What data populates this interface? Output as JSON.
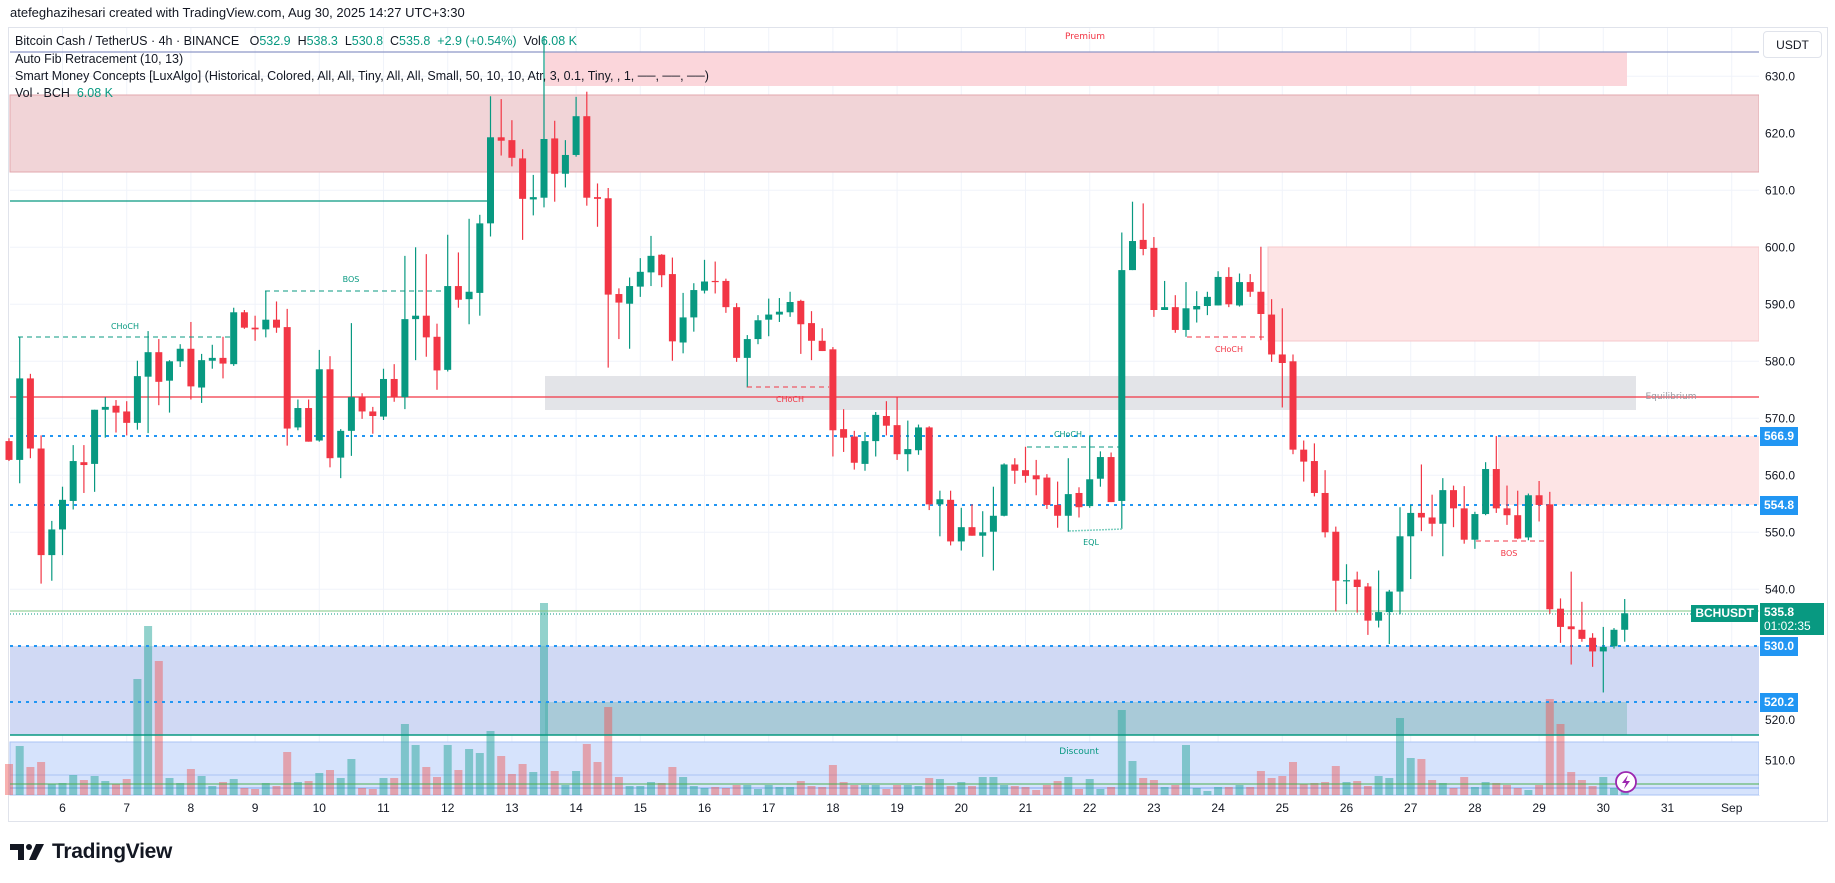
{
  "credit": "atefeghazihesari created with TradingView.com, Aug 30, 2025 14:27 UTC+3:30",
  "legend": {
    "symbol": "Bitcoin Cash / TetherUS · 4h · BINANCE",
    "o_label": "O",
    "o": "532.9",
    "h_label": "H",
    "h": "538.3",
    "l_label": "L",
    "l": "530.8",
    "c_label": "C",
    "c": "535.8",
    "change": "+2.9 (+0.54%)",
    "vol_label": "Vol",
    "vol": "6.08 K",
    "indicator1": "Auto Fib Retracement (10, 13)",
    "indicator2": "Smart Money Concepts [LuxAlgo] (Historical, Colored, All, All, Tiny, All, All, Small, 50, 10, 10, Atr, 3, 0.1, Tiny, , 1, ──, ──, ──)",
    "indicator3_label": "Vol · BCH",
    "indicator3_value": "6.08 K"
  },
  "currency": "USDT",
  "zones": {
    "premium": "Premium",
    "equilibrium": "Equilibrium",
    "discount": "Discount"
  },
  "structure_labels": {
    "choch1": "CHoCH",
    "bos1": "BOS",
    "choch2": "CHoCH",
    "choch3": "CHoCH",
    "eql": "EQL",
    "choch4": "CHoCH",
    "bos2": "BOS"
  },
  "price_tags": {
    "symbol": "BCHUSDT",
    "last": "535.8",
    "countdown": "01:02:35",
    "levels": [
      "566.9",
      "554.8",
      "530.0",
      "520.2"
    ]
  },
  "colors": {
    "up": "#089981",
    "down": "#f23645",
    "level": "#2196f3",
    "background": "#ffffff"
  },
  "logo": "TradingView",
  "chart_data": {
    "type": "candlestick",
    "title": "Bitcoin Cash / TetherUS · 4h · BINANCE",
    "xlabel": "",
    "ylabel": "USDT",
    "ylim": [
      502.7,
      638.5
    ],
    "y_ticks": [
      "630.0",
      "620.0",
      "610.0",
      "600.0",
      "590.0",
      "580.0",
      "570.0",
      "560.0",
      "550.0",
      "540.0",
      "530.0",
      "520.0",
      "510.0"
    ],
    "x_ticks": [
      "6",
      "7",
      "8",
      "9",
      "10",
      "11",
      "12",
      "13",
      "14",
      "15",
      "16",
      "17",
      "18",
      "19",
      "20",
      "21",
      "22",
      "23",
      "24",
      "25",
      "26",
      "27",
      "28",
      "29",
      "30",
      "31",
      "Sep"
    ],
    "x_first_tick_bar": 5,
    "bars_per_day": 6,
    "grid": true,
    "volume_unit": "K",
    "volume_range": [
      0,
      240
    ],
    "candles_ohlc": [
      [
        566,
        566.5,
        562.5,
        562.7
      ],
      [
        562.7,
        584.3,
        558.6,
        577
      ],
      [
        577,
        577.8,
        563,
        564.7
      ],
      [
        564.7,
        567,
        541,
        546
      ],
      [
        546,
        552,
        541.5,
        550.5
      ],
      [
        550.5,
        558,
        546,
        555.7
      ],
      [
        555.5,
        565.3,
        554,
        562.5
      ],
      [
        562.3,
        565.3,
        556.9,
        561.8
      ],
      [
        562,
        571.5,
        557.1,
        571.5
      ],
      [
        571.5,
        573.7,
        566.6,
        572
      ],
      [
        572.2,
        573.2,
        567.5,
        571
      ],
      [
        571.2,
        573,
        567,
        569.2
      ],
      [
        569.2,
        580.1,
        568,
        577.4
      ],
      [
        577.3,
        585.3,
        567.4,
        581.6
      ],
      [
        581.6,
        583.9,
        572.3,
        576.4
      ],
      [
        576.6,
        580.2,
        571,
        580
      ],
      [
        580,
        583,
        579,
        582.2
      ],
      [
        582.2,
        586.9,
        573.3,
        575.6
      ],
      [
        575.4,
        581.3,
        572.7,
        580.2
      ],
      [
        580.1,
        582.9,
        578.7,
        580.6
      ],
      [
        580.6,
        584.3,
        577,
        579.6
      ],
      [
        579.5,
        589.4,
        579.2,
        588.6
      ],
      [
        588.6,
        589,
        585.7,
        585.9
      ],
      [
        585.9,
        588,
        583.6,
        585.6
      ],
      [
        585.6,
        592.3,
        584.2,
        587.3
      ],
      [
        587.3,
        590.5,
        585,
        585.9
      ],
      [
        586,
        589.2,
        565.2,
        568.2
      ],
      [
        568.4,
        573.3,
        567.9,
        571.8
      ],
      [
        571.8,
        573.3,
        565.9,
        565.9
      ],
      [
        566.1,
        582,
        565.9,
        578.6
      ],
      [
        578.6,
        580.9,
        561.4,
        563
      ],
      [
        563.1,
        568.1,
        559.5,
        567.8
      ],
      [
        567.8,
        586.7,
        563.4,
        573.7
      ],
      [
        573.7,
        574.4,
        569.9,
        571.2
      ],
      [
        571.2,
        572,
        567.3,
        570.4
      ],
      [
        570.3,
        578.7,
        569.7,
        576.9
      ],
      [
        576.9,
        579.5,
        572.9,
        573.7
      ],
      [
        573.7,
        598.5,
        571.6,
        587.4
      ],
      [
        587.4,
        600,
        580.2,
        588
      ],
      [
        588,
        598.8,
        580.8,
        584.2
      ],
      [
        584.3,
        586.6,
        575,
        578.4
      ],
      [
        578.5,
        602.2,
        578.2,
        593.2
      ],
      [
        593.2,
        599.1,
        589.4,
        590.8
      ],
      [
        590.9,
        605,
        586.5,
        592.2
      ],
      [
        592,
        605.7,
        588,
        604.2
      ],
      [
        604.2,
        626.5,
        601.9,
        619.3
      ],
      [
        619.3,
        626,
        616.1,
        618.7
      ],
      [
        618.8,
        622.3,
        614.2,
        615.7
      ],
      [
        615.6,
        617.2,
        601.3,
        608.5
      ],
      [
        608.4,
        612.7,
        605.6,
        608.8
      ],
      [
        608.7,
        637,
        607,
        619
      ],
      [
        619.1,
        622.2,
        608,
        612.9
      ],
      [
        612.9,
        618.8,
        610.5,
        616.2
      ],
      [
        616.2,
        626.4,
        615.9,
        623
      ],
      [
        623,
        627.3,
        607.3,
        608.7
      ],
      [
        608.8,
        611.2,
        603.6,
        608.5
      ],
      [
        608.6,
        610.4,
        578.9,
        591.7
      ],
      [
        591.8,
        592.8,
        583.9,
        590.3
      ],
      [
        590.1,
        594.7,
        582.2,
        593.2
      ],
      [
        593.1,
        598.1,
        591.3,
        595.7
      ],
      [
        595.6,
        602,
        593.2,
        598.5
      ],
      [
        598.7,
        598.8,
        593,
        595.1
      ],
      [
        595.3,
        598.2,
        580.1,
        583.5
      ],
      [
        583.3,
        592,
        581.4,
        587.7
      ],
      [
        587.7,
        593.7,
        585.2,
        592.5
      ],
      [
        592.4,
        597.8,
        591.9,
        594
      ],
      [
        594.1,
        597.5,
        591.9,
        594
      ],
      [
        594.1,
        594.5,
        588.5,
        589.5
      ],
      [
        589.5,
        590.2,
        579.9,
        580.6
      ],
      [
        580.6,
        584.6,
        575.4,
        583.9
      ],
      [
        583.9,
        588.1,
        583,
        587.2
      ],
      [
        587.3,
        591,
        584.4,
        588.2
      ],
      [
        588.2,
        591.1,
        586.9,
        588.7
      ],
      [
        588.6,
        592.2,
        587.8,
        590.4
      ],
      [
        590.6,
        590.8,
        581.3,
        586.5
      ],
      [
        586.7,
        588.8,
        580.2,
        583.6
      ],
      [
        583.6,
        585.8,
        581.8,
        581.8
      ],
      [
        582.1,
        582.5,
        563.3,
        567.9
      ],
      [
        568.1,
        571.6,
        564.1,
        566.6
      ],
      [
        566.8,
        567.8,
        561,
        562.2
      ],
      [
        562,
        567.6,
        560.8,
        566
      ],
      [
        566,
        571.1,
        563.3,
        570.6
      ],
      [
        570.4,
        573,
        567,
        568.7
      ],
      [
        568.8,
        573.7,
        562.7,
        563.7
      ],
      [
        563.7,
        569.6,
        560.7,
        564.6
      ],
      [
        564.4,
        568.9,
        563.6,
        568.4
      ],
      [
        568.4,
        568.6,
        553.9,
        554.9
      ],
      [
        554.9,
        557.3,
        549.3,
        555.8
      ],
      [
        555.7,
        557.3,
        547.7,
        548.4
      ],
      [
        548.4,
        554.3,
        546.8,
        550.9
      ],
      [
        550.9,
        554.9,
        549.4,
        549.4
      ],
      [
        549.4,
        553.7,
        545.7,
        550
      ],
      [
        550.1,
        558,
        543.3,
        552.9
      ],
      [
        552.9,
        562.1,
        552.8,
        561.9
      ],
      [
        561.9,
        563,
        558.5,
        560.8
      ],
      [
        560.9,
        565,
        558.7,
        559.9
      ],
      [
        560,
        562.7,
        556.5,
        559.3
      ],
      [
        559.6,
        560.2,
        554.1,
        554.8
      ],
      [
        554.8,
        558.9,
        550.8,
        552.9
      ],
      [
        552.9,
        563,
        550.1,
        556.7
      ],
      [
        556.9,
        557.9,
        552.6,
        554.4
      ],
      [
        554.6,
        567,
        554.3,
        559.3
      ],
      [
        559.4,
        564.2,
        558,
        563.2
      ],
      [
        563.2,
        564,
        555.3,
        555.3
      ],
      [
        555.5,
        602.6,
        550.6,
        596
      ],
      [
        596,
        608,
        596,
        601.1
      ],
      [
        601.3,
        607.7,
        598.6,
        599.7
      ],
      [
        599.9,
        601.8,
        587.8,
        589
      ],
      [
        589,
        594.1,
        589,
        589.5
      ],
      [
        589.5,
        591.6,
        585,
        585.5
      ],
      [
        585.5,
        593.9,
        584.3,
        589.3
      ],
      [
        589.1,
        592.3,
        586.8,
        589.7
      ],
      [
        589.7,
        592.2,
        588.1,
        591.3
      ],
      [
        589.8,
        595.8,
        589.8,
        594.8
      ],
      [
        594.8,
        596.5,
        589.5,
        590
      ],
      [
        589.8,
        595.4,
        589.6,
        593.9
      ],
      [
        593.9,
        595.3,
        591.3,
        592.2
      ],
      [
        592.2,
        600.1,
        583.7,
        588.3
      ],
      [
        588.2,
        590.9,
        579.9,
        581.2
      ],
      [
        581.2,
        589.3,
        571.9,
        579.7
      ],
      [
        580,
        581.2,
        563.7,
        564.5
      ],
      [
        564.5,
        566.1,
        558.9,
        562.4
      ],
      [
        562.5,
        565.6,
        556.3,
        556.9
      ],
      [
        556.9,
        560.9,
        549.1,
        550
      ],
      [
        550.1,
        551,
        536.1,
        541.5
      ],
      [
        541.5,
        544.4,
        537.4,
        541.6
      ],
      [
        541.7,
        543.1,
        535.9,
        540.4
      ],
      [
        540.5,
        541.1,
        532,
        534.5
      ],
      [
        534.5,
        543.3,
        533.3,
        536
      ],
      [
        536,
        539.9,
        530.4,
        539.6
      ],
      [
        539.6,
        554.4,
        535.6,
        549.3
      ],
      [
        549.3,
        554.8,
        541.8,
        553.4
      ],
      [
        553.4,
        561.9,
        550.2,
        552.6
      ],
      [
        552.6,
        556.6,
        549.3,
        551.5
      ],
      [
        551.5,
        559.5,
        545.8,
        557.4
      ],
      [
        557.4,
        558.2,
        550.9,
        554.2
      ],
      [
        554.2,
        558.1,
        548,
        548.7
      ],
      [
        548.7,
        553.6,
        547.1,
        553.2
      ],
      [
        553.2,
        562.3,
        553,
        561.1
      ],
      [
        561.1,
        566.9,
        553.4,
        554.2
      ],
      [
        554.2,
        558.2,
        551.3,
        553
      ],
      [
        553,
        557.3,
        548.8,
        548.9
      ],
      [
        549.1,
        556.8,
        548.6,
        556.5
      ],
      [
        556.5,
        559,
        551.9,
        554.8
      ],
      [
        554.9,
        557.1,
        535.7,
        536.5
      ],
      [
        536.6,
        538.4,
        530.6,
        533.4
      ],
      [
        533.5,
        543.1,
        526.8,
        533
      ],
      [
        532.9,
        537.8,
        530.8,
        531.3
      ],
      [
        531.5,
        532.3,
        526.4,
        529.1
      ],
      [
        529.1,
        533.4,
        521.9,
        529.9
      ],
      [
        530,
        533.2,
        529.6,
        532.9
      ],
      [
        532.9,
        538.3,
        530.8,
        535.8
      ]
    ],
    "volumes": [
      37.2,
      58.8,
      33.6,
      39.6,
      13.2,
      14.4,
      24,
      18,
      22.8,
      16.8,
      13.2,
      19.2,
      139.2,
      202.8,
      160.8,
      20.4,
      14.4,
      31.2,
      22.8,
      10.8,
      15.6,
      19.2,
      8.4,
      7.2,
      14.4,
      10.8,
      51.6,
      15.6,
      16.8,
      26.4,
      30,
      20.4,
      43.2,
      8.4,
      7.2,
      20.4,
      20.4,
      85.2,
      60,
      33.6,
      21.6,
      60,
      30,
      55.2,
      50.4,
      76.8,
      46.8,
      25.2,
      37.2,
      27.6,
      230.4,
      28.8,
      12,
      28.8,
      61.2,
      39.6,
      105.6,
      21.6,
      10.8,
      10.8,
      15.6,
      14.4,
      33.6,
      21.6,
      10.8,
      8.4,
      9.6,
      8.4,
      12,
      12,
      7.2,
      12,
      9.6,
      9.6,
      16.8,
      10.8,
      9.6,
      36,
      15.6,
      12,
      12,
      12,
      7.2,
      12,
      12,
      10.8,
      20.4,
      19.2,
      10.8,
      15.6,
      10.8,
      21.6,
      21.6,
      12,
      10.8,
      9.6,
      6,
      12,
      16.8,
      21.6,
      7.2,
      19.2,
      7.2,
      9.6,
      102,
      40.8,
      20.4,
      18,
      9.6,
      12,
      60,
      8.4,
      4.8,
      9.6,
      9.6,
      12,
      9.6,
      28.8,
      20.4,
      22.8,
      39.6,
      13.2,
      14.4,
      15.6,
      34.8,
      15.6,
      16.8,
      10.8,
      22.8,
      20.4,
      92.4,
      44.4,
      43.2,
      18,
      14.4,
      8.4,
      21.6,
      9.6,
      15.6,
      14.4,
      12,
      8.4,
      6,
      12,
      115.2,
      85.2,
      27.6,
      18,
      10.8,
      21.6,
      8.4,
      6.08
    ]
  }
}
